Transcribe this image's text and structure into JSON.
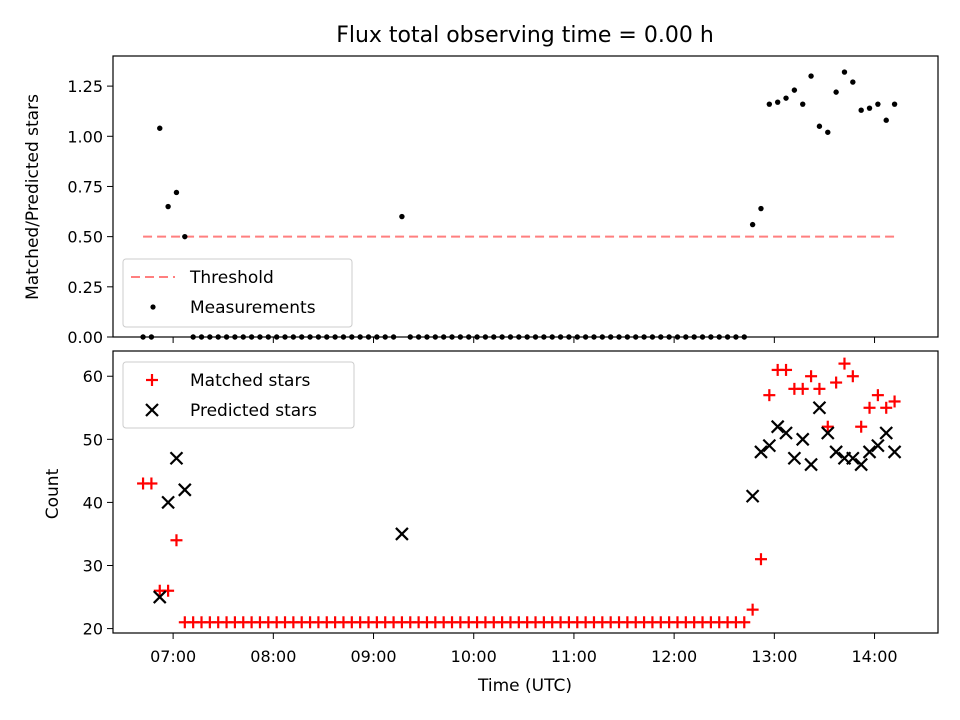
{
  "title": "Flux total observing time = 0.00 h",
  "chart_data": [
    {
      "type": "scatter",
      "ylabel": "Matched/Predicted stars",
      "xlabel": "",
      "xlim": [
        "06:24",
        "14:38"
      ],
      "ylim": [
        0,
        1.4
      ],
      "x_ticks": [
        "07:00",
        "08:00",
        "09:00",
        "10:00",
        "11:00",
        "12:00",
        "13:00",
        "14:00"
      ],
      "y_ticks": [
        "0.00",
        "0.25",
        "0.50",
        "0.75",
        "1.00",
        "1.25"
      ],
      "legend": [
        "Threshold",
        "Measurements"
      ],
      "legend_position": "lower-left",
      "threshold": {
        "name": "Threshold",
        "value": 0.5,
        "x_start": "06:42",
        "x_end": "14:12",
        "color": "#ff7f7f"
      },
      "series": [
        {
          "name": "Measurements",
          "color": "#000000",
          "x": [
            "06:42",
            "06:47",
            "06:52",
            "06:57",
            "07:02",
            "07:07",
            "07:12",
            "07:17",
            "07:22",
            "07:27",
            "07:32",
            "07:37",
            "07:42",
            "07:47",
            "07:52",
            "07:57",
            "08:02",
            "08:07",
            "08:12",
            "08:17",
            "08:22",
            "08:27",
            "08:32",
            "08:37",
            "08:42",
            "08:47",
            "08:52",
            "08:57",
            "09:02",
            "09:07",
            "09:12",
            "09:17",
            "09:22",
            "09:27",
            "09:32",
            "09:37",
            "09:42",
            "09:47",
            "09:52",
            "09:57",
            "10:02",
            "10:07",
            "10:12",
            "10:17",
            "10:22",
            "10:27",
            "10:32",
            "10:37",
            "10:42",
            "10:47",
            "10:52",
            "10:57",
            "11:02",
            "11:07",
            "11:12",
            "11:17",
            "11:22",
            "11:27",
            "11:32",
            "11:37",
            "11:42",
            "11:47",
            "11:52",
            "11:57",
            "12:02",
            "12:07",
            "12:12",
            "12:17",
            "12:22",
            "12:27",
            "12:32",
            "12:37",
            "12:42",
            "12:47",
            "12:52",
            "12:57",
            "13:02",
            "13:07",
            "13:12",
            "13:17",
            "13:22",
            "13:27",
            "13:32",
            "13:37",
            "13:42",
            "13:47",
            "13:52",
            "13:57",
            "14:02",
            "14:07",
            "14:12"
          ],
          "y": [
            0,
            0,
            1.04,
            0.65,
            0.72,
            0.5,
            0,
            0,
            0,
            0,
            0,
            0,
            0,
            0,
            0,
            0,
            0,
            0,
            0,
            0,
            0,
            0,
            0,
            0,
            0,
            0,
            0,
            0,
            0,
            0,
            0,
            0.6,
            0,
            0,
            0,
            0,
            0,
            0,
            0,
            0,
            0,
            0,
            0,
            0,
            0,
            0,
            0,
            0,
            0,
            0,
            0,
            0,
            0,
            0,
            0,
            0,
            0,
            0,
            0,
            0,
            0,
            0,
            0,
            0,
            0,
            0,
            0,
            0,
            0,
            0,
            0,
            0,
            0,
            0.56,
            0.64,
            1.16,
            1.17,
            1.19,
            1.23,
            1.16,
            1.3,
            1.05,
            1.02,
            1.22,
            1.32,
            1.27,
            1.13,
            1.14,
            1.16,
            1.08,
            1.16
          ]
        }
      ]
    },
    {
      "type": "scatter",
      "ylabel": "Count",
      "xlabel": "Time (UTC)",
      "xlim": [
        "06:24",
        "14:38"
      ],
      "ylim": [
        19.3,
        64
      ],
      "x_ticks": [
        "07:00",
        "08:00",
        "09:00",
        "10:00",
        "11:00",
        "12:00",
        "13:00",
        "14:00"
      ],
      "y_ticks": [
        "20",
        "30",
        "40",
        "50",
        "60"
      ],
      "legend": [
        "Matched stars",
        "Predicted stars"
      ],
      "legend_position": "upper-left",
      "series": [
        {
          "name": "Matched stars",
          "marker": "+",
          "color": "#ff0000",
          "x": [
            "06:42",
            "06:47",
            "06:52",
            "06:57",
            "07:02",
            "07:07",
            "07:12",
            "07:17",
            "07:22",
            "07:27",
            "07:32",
            "07:37",
            "07:42",
            "07:47",
            "07:52",
            "07:57",
            "08:02",
            "08:07",
            "08:12",
            "08:17",
            "08:22",
            "08:27",
            "08:32",
            "08:37",
            "08:42",
            "08:47",
            "08:52",
            "08:57",
            "09:02",
            "09:07",
            "09:12",
            "09:17",
            "09:22",
            "09:27",
            "09:32",
            "09:37",
            "09:42",
            "09:47",
            "09:52",
            "09:57",
            "10:02",
            "10:07",
            "10:12",
            "10:17",
            "10:22",
            "10:27",
            "10:32",
            "10:37",
            "10:42",
            "10:47",
            "10:52",
            "10:57",
            "11:02",
            "11:07",
            "11:12",
            "11:17",
            "11:22",
            "11:27",
            "11:32",
            "11:37",
            "11:42",
            "11:47",
            "11:52",
            "11:57",
            "12:02",
            "12:07",
            "12:12",
            "12:17",
            "12:22",
            "12:27",
            "12:32",
            "12:37",
            "12:42",
            "12:47",
            "12:52",
            "12:57",
            "13:02",
            "13:07",
            "13:12",
            "13:17",
            "13:22",
            "13:27",
            "13:32",
            "13:37",
            "13:42",
            "13:47",
            "13:52",
            "13:57",
            "14:02",
            "14:07",
            "14:12"
          ],
          "y": [
            43,
            43,
            26,
            26,
            34,
            21,
            21,
            21,
            21,
            21,
            21,
            21,
            21,
            21,
            21,
            21,
            21,
            21,
            21,
            21,
            21,
            21,
            21,
            21,
            21,
            21,
            21,
            21,
            21,
            21,
            21,
            21,
            21,
            21,
            21,
            21,
            21,
            21,
            21,
            21,
            21,
            21,
            21,
            21,
            21,
            21,
            21,
            21,
            21,
            21,
            21,
            21,
            21,
            21,
            21,
            21,
            21,
            21,
            21,
            21,
            21,
            21,
            21,
            21,
            21,
            21,
            21,
            21,
            21,
            21,
            21,
            21,
            21,
            23,
            31,
            57,
            61,
            61,
            58,
            58,
            60,
            58,
            52,
            59,
            62,
            60,
            52,
            55,
            57,
            55,
            56
          ]
        },
        {
          "name": "Predicted stars",
          "marker": "x",
          "color": "#000000",
          "x": [
            "06:52",
            "06:57",
            "07:02",
            "07:07",
            "09:17",
            "12:47",
            "12:52",
            "12:57",
            "13:02",
            "13:07",
            "13:12",
            "13:17",
            "13:22",
            "13:27",
            "13:32",
            "13:37",
            "13:42",
            "13:47",
            "13:52",
            "13:57",
            "14:02",
            "14:07",
            "14:12"
          ],
          "y": [
            25,
            40,
            47,
            42,
            35,
            41,
            48,
            49,
            52,
            51,
            47,
            50,
            46,
            55,
            51,
            48,
            47,
            47,
            46,
            48,
            49,
            51,
            48
          ]
        }
      ]
    }
  ]
}
